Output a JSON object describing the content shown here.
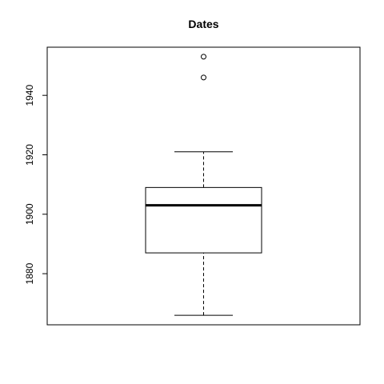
{
  "chart_data": {
    "type": "box",
    "title": "Dates",
    "xlabel": "",
    "ylabel": "",
    "ylim": [
      1862.8,
      1956.2
    ],
    "yticks": [
      1880,
      1900,
      1920,
      1940
    ],
    "y_tick_labels": [
      "1880",
      "1900",
      "1920",
      "1940"
    ],
    "box": {
      "whisker_low": 1866,
      "q1": 1887,
      "median": 1903,
      "q3": 1909,
      "whisker_high": 1921,
      "outliers": [
        1946,
        1953
      ]
    },
    "grid": false,
    "legend": "none"
  }
}
